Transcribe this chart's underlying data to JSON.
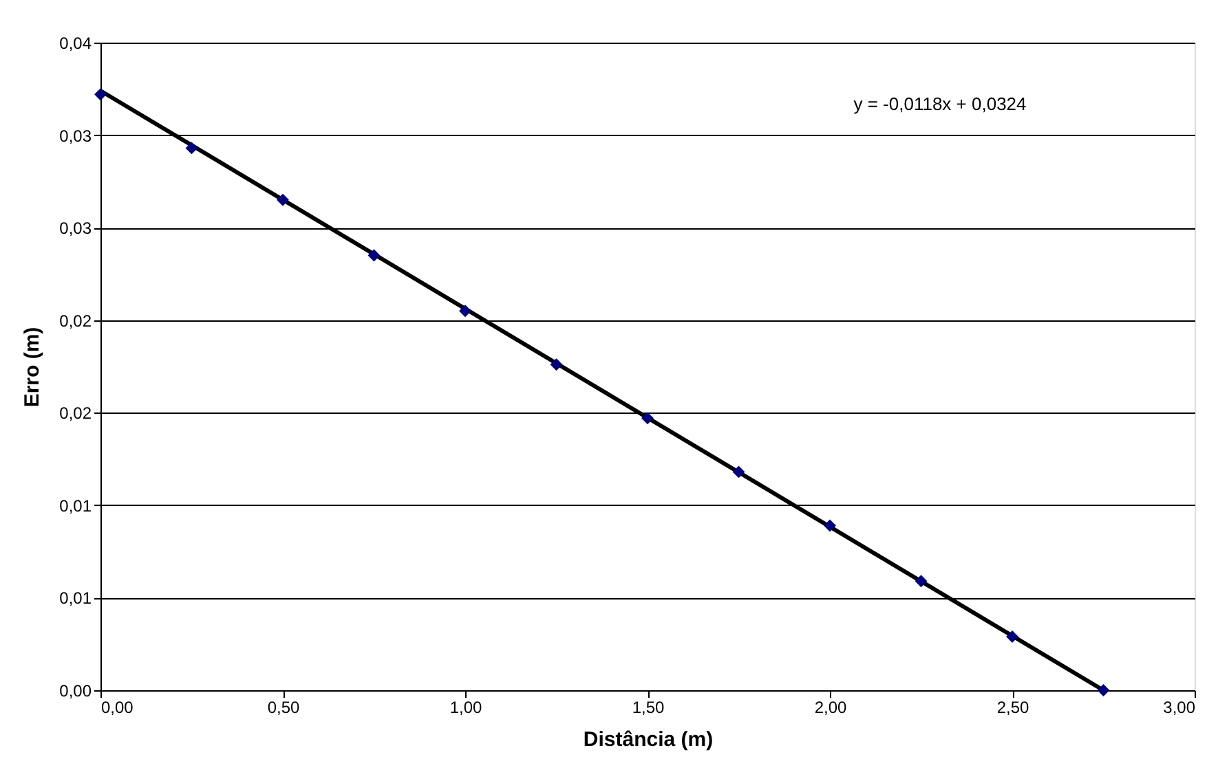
{
  "chart_data": {
    "type": "scatter",
    "xlabel": "Distância (m)",
    "ylabel": "Erro (m)",
    "x": [
      0,
      0.25,
      0.5,
      0.75,
      1.0,
      1.25,
      1.5,
      1.75,
      2.0,
      2.25,
      2.5,
      2.75
    ],
    "series": [
      {
        "type": "line",
        "color": "#000000",
        "marker": "none",
        "line_style": "solid",
        "x": [
          0,
          2.75
        ],
        "values": [
          0.0324,
          0.0
        ]
      },
      {
        "type": "scatter",
        "color": "#000080",
        "marker": "diamond",
        "values": [
          0.0322,
          0.0293,
          0.0265,
          0.0235,
          0.0205,
          0.0176,
          0.0147,
          0.0118,
          0.0089,
          0.0059,
          0.0029,
          0.0
        ]
      }
    ],
    "xlim": [
      0,
      3
    ],
    "ylim": [
      0,
      0.035
    ],
    "xticks": [
      {
        "value": 0,
        "label": "0,00"
      },
      {
        "value": 0.5,
        "label": "0,50"
      },
      {
        "value": 1.0,
        "label": "1,00"
      },
      {
        "value": 1.5,
        "label": "1,50"
      },
      {
        "value": 2.0,
        "label": "2,00"
      },
      {
        "value": 2.5,
        "label": "2,50"
      },
      {
        "value": 3.0,
        "label": "3,00"
      }
    ],
    "yticks": [
      {
        "value": 0,
        "label": "0,00"
      },
      {
        "value": 0.005,
        "label": "0,01"
      },
      {
        "value": 0.01,
        "label": "0,01"
      },
      {
        "value": 0.015,
        "label": "0,02"
      },
      {
        "value": 0.02,
        "label": "0,02"
      },
      {
        "value": 0.025,
        "label": "0,03"
      },
      {
        "value": 0.03,
        "label": "0,03"
      },
      {
        "value": 0.035,
        "label": "0,04"
      }
    ],
    "grid": "y",
    "annotations": [
      "y = -0,0118x + 0,0324"
    ]
  }
}
